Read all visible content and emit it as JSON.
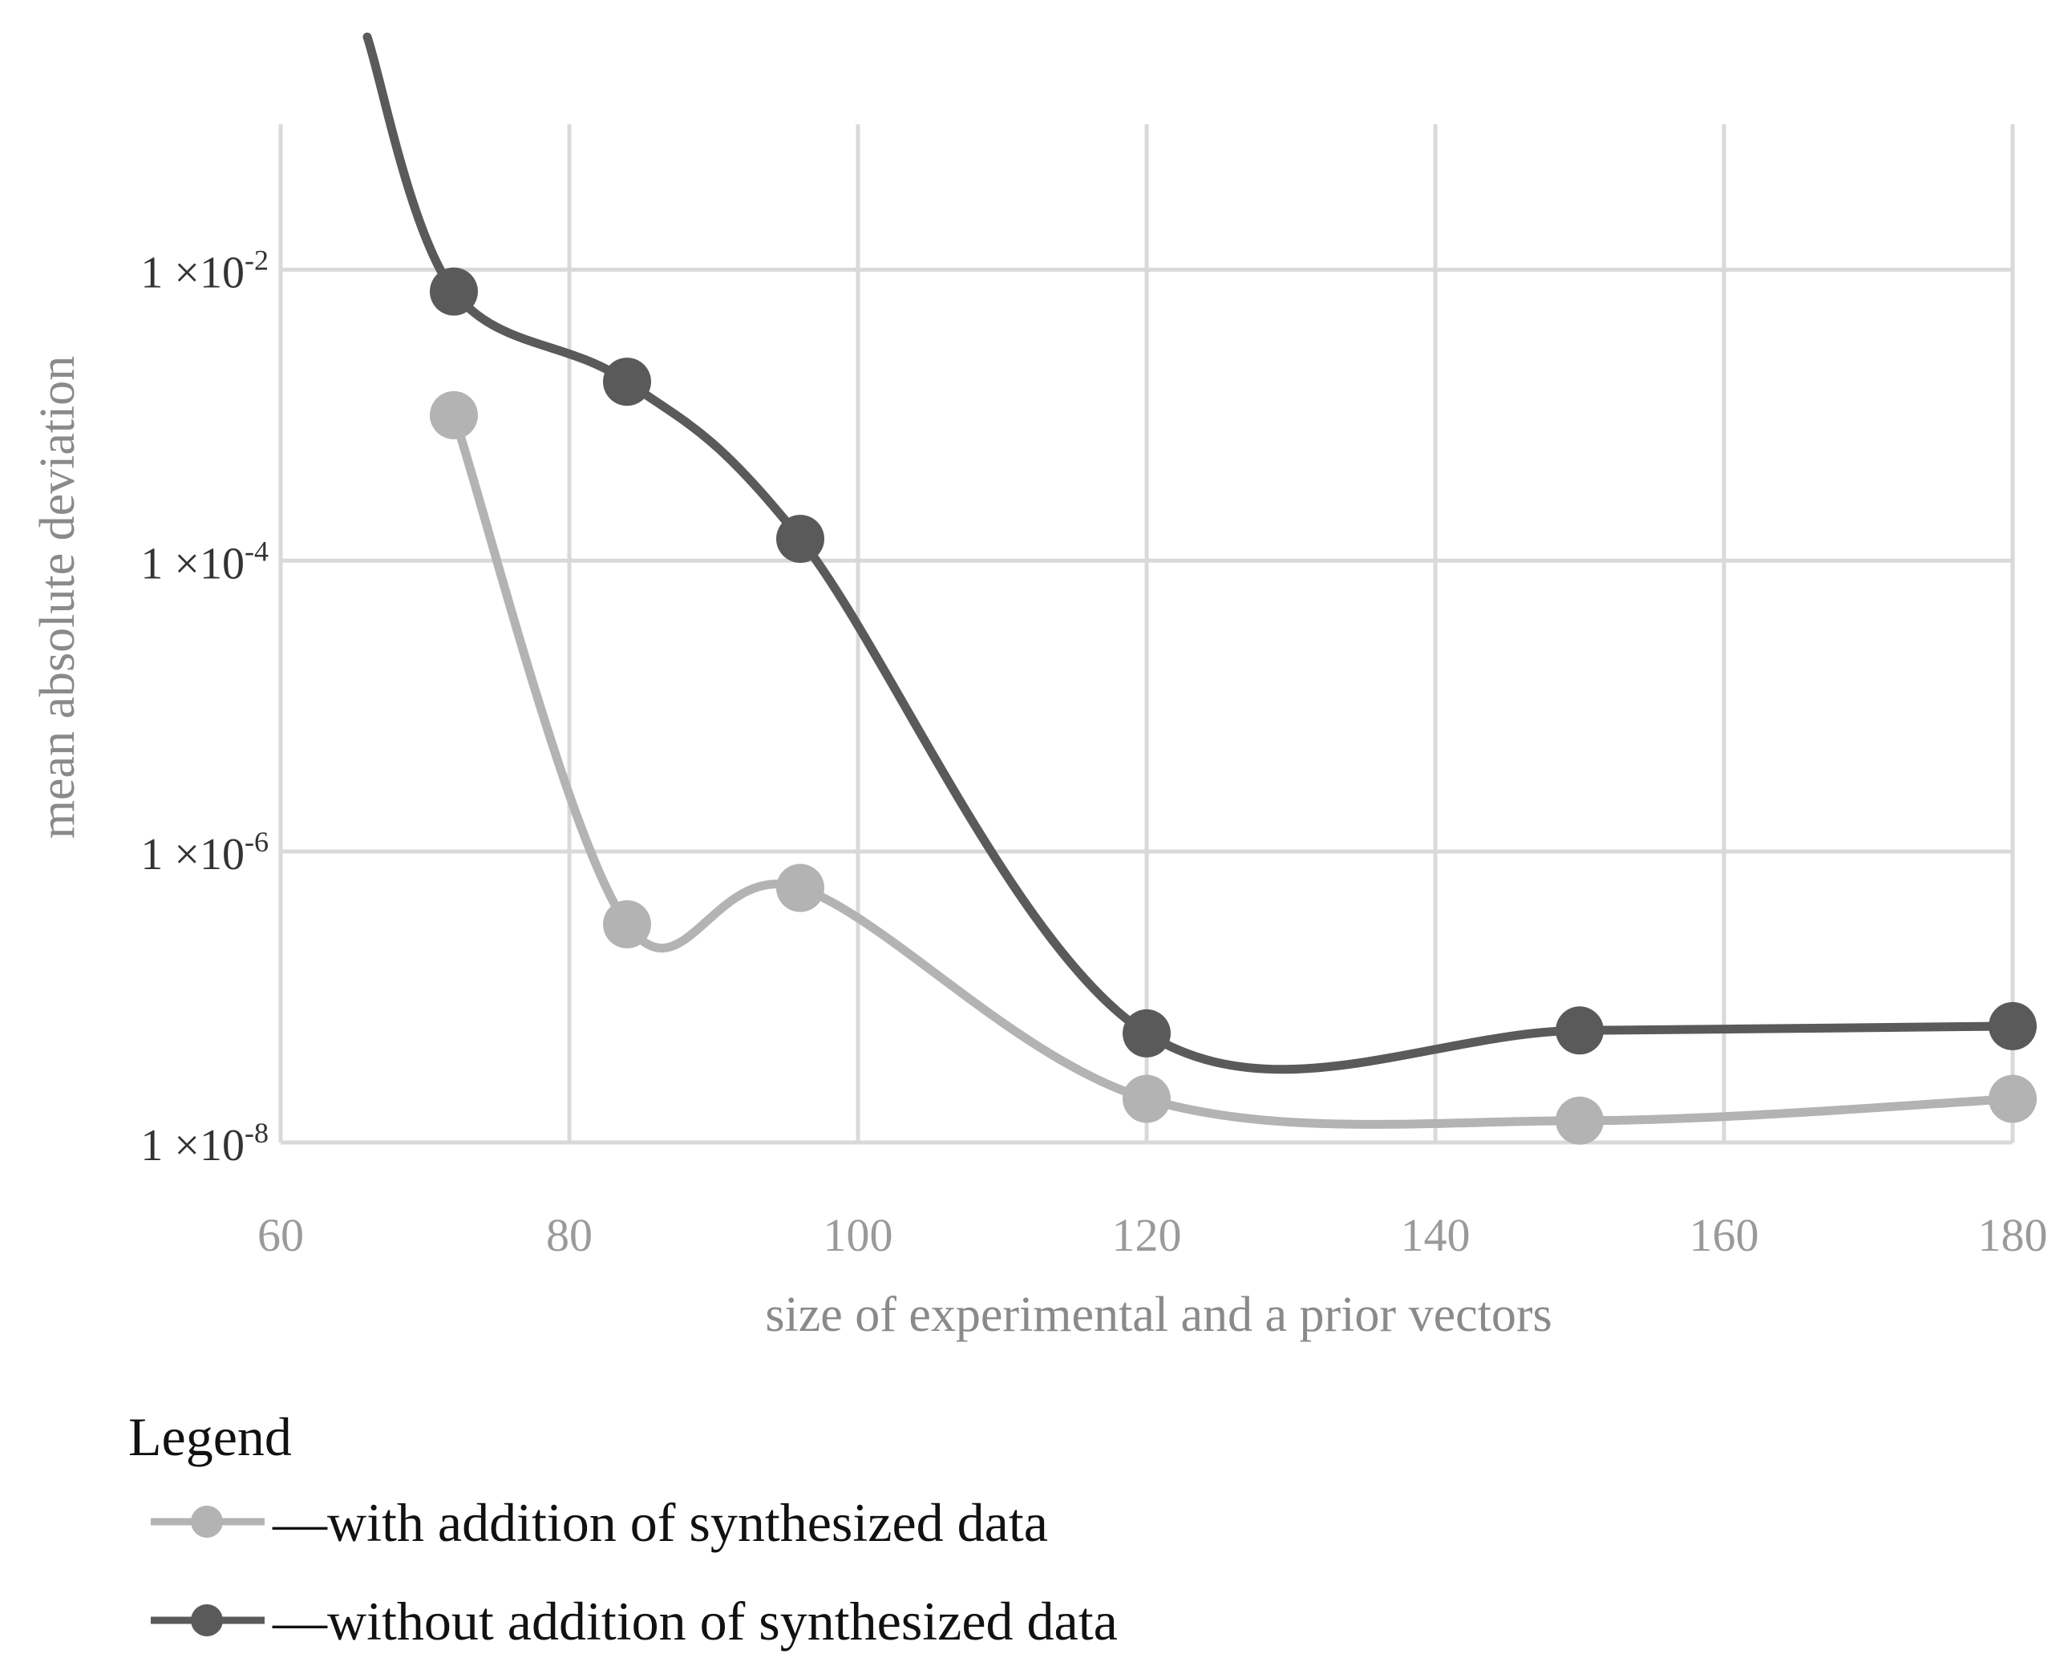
{
  "chart_data": {
    "type": "line",
    "title": "",
    "xlabel": "size of experimental and a prior vectors",
    "ylabel": "mean absolute deviation",
    "xlim": [
      60,
      180
    ],
    "x_ticks": [
      60,
      80,
      100,
      120,
      140,
      160,
      180
    ],
    "y_scale": "log",
    "ylim_log10": [
      -8,
      -1
    ],
    "y_ticks": [
      {
        "exp": -2,
        "base": "1 ×10",
        "sup": "-2"
      },
      {
        "exp": -4,
        "base": "1 ×10",
        "sup": "-4"
      },
      {
        "exp": -6,
        "base": "1 ×10",
        "sup": "-6"
      },
      {
        "exp": -8,
        "base": "1 ×10",
        "sup": "-8"
      }
    ],
    "grid": true,
    "series": [
      {
        "name": "with addition of synthesized data",
        "color": "#b3b3b3",
        "x": [
          72,
          84,
          96,
          120,
          150,
          180
        ],
        "log10_y": [
          -3.0,
          -6.5,
          -6.25,
          -7.7,
          -7.85,
          -7.7
        ],
        "lead_in": null
      },
      {
        "name": "without addition of synthesized data",
        "color": "#5a5a5a",
        "x": [
          72,
          84,
          96,
          120,
          150,
          180
        ],
        "log10_y": [
          -2.15,
          -2.77,
          -3.85,
          -7.25,
          -7.23,
          -7.2
        ],
        "lead_in": {
          "x": 66,
          "log10_y": -0.4
        }
      }
    ],
    "legend": {
      "title": "Legend",
      "placement": "bottom-left",
      "entries": [
        {
          "text": "—with addition of synthesized data",
          "color": "#b3b3b3"
        },
        {
          "text": "—without addition of synthesized data",
          "color": "#5a5a5a"
        }
      ]
    }
  }
}
